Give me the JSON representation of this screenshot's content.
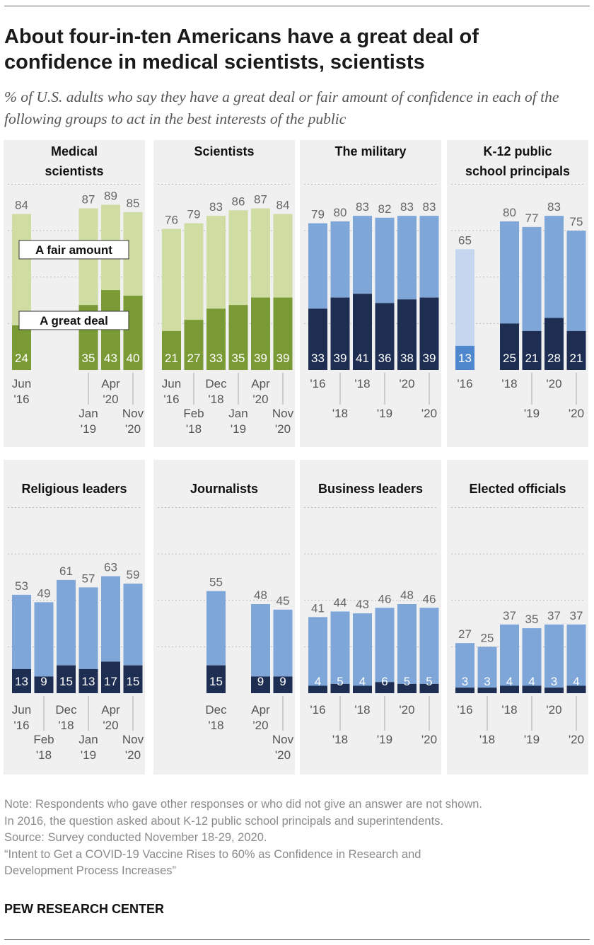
{
  "title": "About four-in-ten Americans have a great deal of confidence in medical scientists, scientists",
  "subtitle": "% of U.S. adults who say they have a great deal or fair amount of confidence in each of the following groups to act in the best interests of the public",
  "legend": {
    "fair": "A fair amount",
    "great": "A great deal"
  },
  "colors": {
    "panel_bg": "#f0f0f0",
    "green_light": "#cfdca2",
    "green_dark": "#7a9a35",
    "blue_light": "#7fa6d9",
    "blue_dark": "#1e2e52",
    "blue_faded": "#c4d7ef",
    "blue_faded_dark": "#4f87cc",
    "label_gray": "#666666",
    "grid": "#bbbbbb"
  },
  "chart_data": [
    {
      "type": "bar",
      "stacked": true,
      "title": [
        "Medical",
        "scientists"
      ],
      "palette": "green",
      "ylim": [
        0,
        100
      ],
      "bars": [
        {
          "total": 84,
          "great": 24,
          "slot": 0,
          "xlabel": [
            "Jun",
            "'16"
          ],
          "xlabel_level": 1
        },
        {
          "total": 87,
          "great": 35,
          "slot": 3,
          "xlabel": [
            "Jan",
            "'19"
          ],
          "xlabel_level": 2
        },
        {
          "total": 89,
          "great": 43,
          "slot": 4,
          "xlabel": [
            "Apr",
            "'20"
          ],
          "xlabel_level": 1
        },
        {
          "total": 85,
          "great": 40,
          "slot": 5,
          "xlabel": [
            "Nov",
            "'20"
          ],
          "xlabel_level": 2
        }
      ]
    },
    {
      "type": "bar",
      "stacked": true,
      "title": [
        "Scientists"
      ],
      "palette": "green",
      "ylim": [
        0,
        100
      ],
      "bars": [
        {
          "total": 76,
          "great": 21,
          "slot": 0,
          "xlabel": [
            "Jun",
            "'16"
          ],
          "xlabel_level": 1
        },
        {
          "total": 79,
          "great": 27,
          "slot": 1,
          "xlabel": [
            "Feb",
            "'18"
          ],
          "xlabel_level": 2
        },
        {
          "total": 83,
          "great": 33,
          "slot": 2,
          "xlabel": [
            "Dec",
            "'18"
          ],
          "xlabel_level": 1
        },
        {
          "total": 86,
          "great": 35,
          "slot": 3,
          "xlabel": [
            "Jan",
            "'19"
          ],
          "xlabel_level": 2
        },
        {
          "total": 87,
          "great": 39,
          "slot": 4,
          "xlabel": [
            "Apr",
            "'20"
          ],
          "xlabel_level": 1
        },
        {
          "total": 84,
          "great": 39,
          "slot": 5,
          "xlabel": [
            "Nov",
            "'20"
          ],
          "xlabel_level": 2
        }
      ]
    },
    {
      "type": "bar",
      "stacked": true,
      "title": [
        "The military"
      ],
      "palette": "blue",
      "ylim": [
        0,
        100
      ],
      "bars": [
        {
          "total": 79,
          "great": 33,
          "slot": 0,
          "xlabel": [
            "'16"
          ],
          "xlabel_level": 1
        },
        {
          "total": 80,
          "great": 39,
          "slot": 1,
          "xlabel": [
            "'18"
          ],
          "xlabel_level": 2
        },
        {
          "total": 83,
          "great": 41,
          "slot": 2,
          "xlabel": [
            "'18"
          ],
          "xlabel_level": 1
        },
        {
          "total": 82,
          "great": 36,
          "slot": 3,
          "xlabel": [
            "'19"
          ],
          "xlabel_level": 2
        },
        {
          "total": 83,
          "great": 38,
          "slot": 4,
          "xlabel": [
            "'20"
          ],
          "xlabel_level": 1
        },
        {
          "total": 83,
          "great": 39,
          "slot": 5,
          "xlabel": [
            "'20"
          ],
          "xlabel_level": 2
        }
      ]
    },
    {
      "type": "bar",
      "stacked": true,
      "title": [
        "K-12 public",
        "school principals"
      ],
      "palette": "blue",
      "ylim": [
        0,
        100
      ],
      "bars": [
        {
          "total": 65,
          "great": 13,
          "slot": 0,
          "faded": true,
          "xlabel": [
            "'16"
          ],
          "xlabel_level": 1
        },
        {
          "total": 80,
          "great": 25,
          "slot": 2,
          "xlabel": [
            "'18"
          ],
          "xlabel_level": 1
        },
        {
          "total": 77,
          "great": 21,
          "slot": 3,
          "xlabel": [
            "'19"
          ],
          "xlabel_level": 2
        },
        {
          "total": 83,
          "great": 28,
          "slot": 4,
          "xlabel": [
            "'20"
          ],
          "xlabel_level": 1
        },
        {
          "total": 75,
          "great": 21,
          "slot": 5,
          "xlabel": [
            "'20"
          ],
          "xlabel_level": 2
        }
      ]
    },
    {
      "type": "bar",
      "stacked": true,
      "title": [
        "Religious leaders"
      ],
      "palette": "blue",
      "ylim": [
        0,
        100
      ],
      "bars": [
        {
          "total": 53,
          "great": 13,
          "slot": 0,
          "xlabel": [
            "Jun",
            "'16"
          ],
          "xlabel_level": 1
        },
        {
          "total": 49,
          "great": 9,
          "slot": 1,
          "xlabel": [
            "Feb",
            "'18"
          ],
          "xlabel_level": 2
        },
        {
          "total": 61,
          "great": 15,
          "slot": 2,
          "xlabel": [
            "Dec",
            "'18"
          ],
          "xlabel_level": 1
        },
        {
          "total": 57,
          "great": 13,
          "slot": 3,
          "xlabel": [
            "Jan",
            "'19"
          ],
          "xlabel_level": 2
        },
        {
          "total": 63,
          "great": 17,
          "slot": 4,
          "xlabel": [
            "Apr",
            "'20"
          ],
          "xlabel_level": 1
        },
        {
          "total": 59,
          "great": 15,
          "slot": 5,
          "xlabel": [
            "Nov",
            "'20"
          ],
          "xlabel_level": 2
        }
      ]
    },
    {
      "type": "bar",
      "stacked": true,
      "title": [
        "Journalists"
      ],
      "palette": "blue",
      "ylim": [
        0,
        100
      ],
      "bars": [
        {
          "total": 55,
          "great": 15,
          "slot": 2,
          "xlabel": [
            "Dec",
            "'18"
          ],
          "xlabel_level": 1
        },
        {
          "total": 48,
          "great": 9,
          "slot": 4,
          "xlabel": [
            "Apr",
            "'20"
          ],
          "xlabel_level": 1
        },
        {
          "total": 45,
          "great": 9,
          "slot": 5,
          "xlabel": [
            "Nov",
            "'20"
          ],
          "xlabel_level": 2
        }
      ]
    },
    {
      "type": "bar",
      "stacked": true,
      "title": [
        "Business leaders"
      ],
      "palette": "blue",
      "ylim": [
        0,
        100
      ],
      "bars": [
        {
          "total": 41,
          "great": 4,
          "slot": 0,
          "xlabel": [
            "'16"
          ],
          "xlabel_level": 1
        },
        {
          "total": 44,
          "great": 5,
          "slot": 1,
          "xlabel": [
            "'18"
          ],
          "xlabel_level": 2
        },
        {
          "total": 43,
          "great": 4,
          "slot": 2,
          "xlabel": [
            "'18"
          ],
          "xlabel_level": 1
        },
        {
          "total": 46,
          "great": 6,
          "slot": 3,
          "xlabel": [
            "'19"
          ],
          "xlabel_level": 2
        },
        {
          "total": 48,
          "great": 5,
          "slot": 4,
          "xlabel": [
            "'20"
          ],
          "xlabel_level": 1
        },
        {
          "total": 46,
          "great": 5,
          "slot": 5,
          "xlabel": [
            "'20"
          ],
          "xlabel_level": 2
        }
      ]
    },
    {
      "type": "bar",
      "stacked": true,
      "title": [
        "Elected officials"
      ],
      "palette": "blue",
      "ylim": [
        0,
        100
      ],
      "bars": [
        {
          "total": 27,
          "great": 3,
          "slot": 0,
          "xlabel": [
            "'16"
          ],
          "xlabel_level": 1
        },
        {
          "total": 25,
          "great": 3,
          "slot": 1,
          "xlabel": [
            "'18"
          ],
          "xlabel_level": 2
        },
        {
          "total": 37,
          "great": 4,
          "slot": 2,
          "xlabel": [
            "'18"
          ],
          "xlabel_level": 1
        },
        {
          "total": 35,
          "great": 4,
          "slot": 3,
          "xlabel": [
            "'19"
          ],
          "xlabel_level": 2
        },
        {
          "total": 37,
          "great": 3,
          "slot": 4,
          "xlabel": [
            "'20"
          ],
          "xlabel_level": 1
        },
        {
          "total": 37,
          "great": 4,
          "slot": 5,
          "xlabel": [
            "'20"
          ],
          "xlabel_level": 2
        }
      ]
    }
  ],
  "notes": [
    "Note: Respondents who gave other responses or who did not give an answer are not shown.",
    "In 2016, the question asked about K-12 public school principals and superintendents.",
    "Source: Survey conducted November 18-29, 2020.",
    "“Intent to Get a COVID-19 Vaccine Rises to 60% as Confidence in Research and",
    "Development Process Increases”"
  ],
  "brand": "PEW RESEARCH CENTER"
}
